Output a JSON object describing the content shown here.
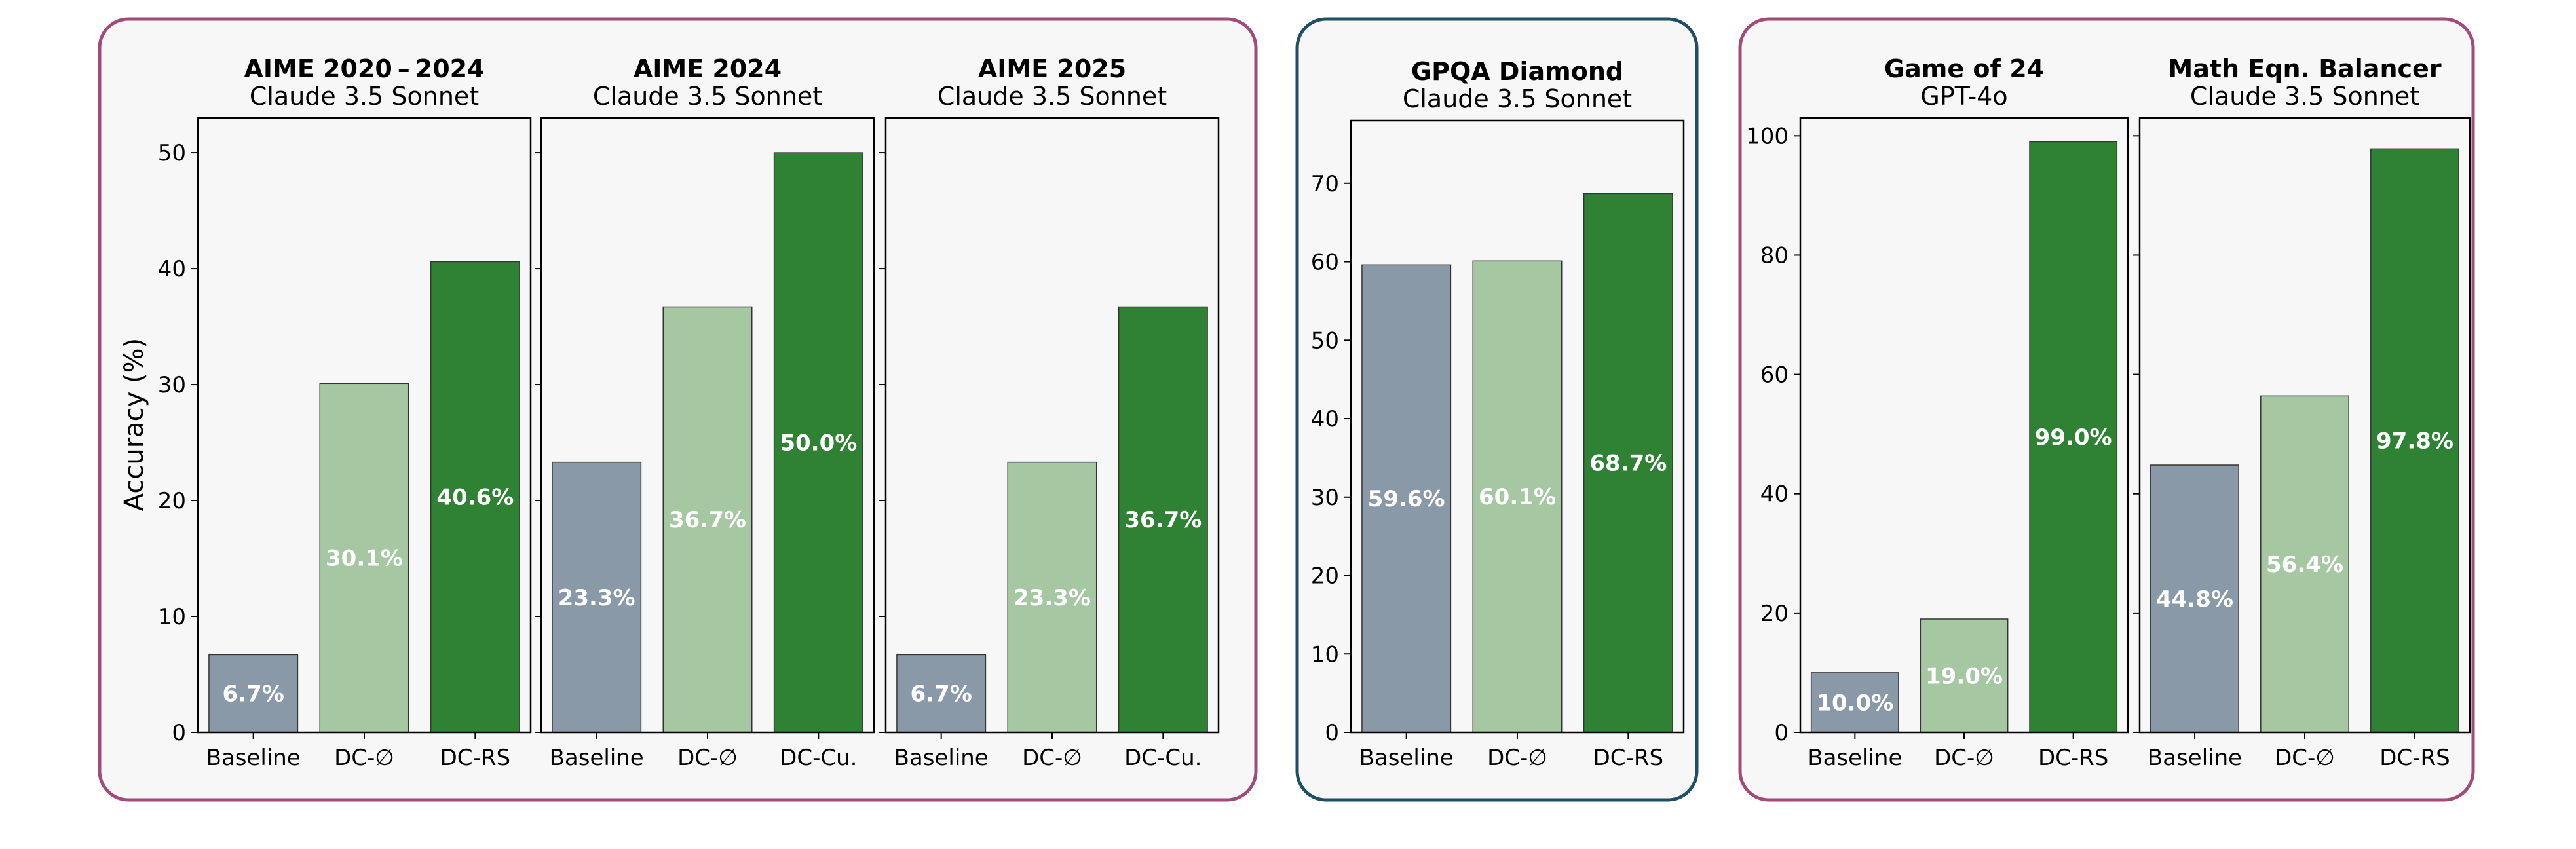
{
  "colors": {
    "baseline": "#8a99a8",
    "dc_empty": "#a5c8a3",
    "dc_best": "#2f8233",
    "group_border_1": "#a24b78",
    "group_border_2": "#1f4f63",
    "group_border_3": "#a24b78",
    "panel_background": "#f7f7f7",
    "bar_label": "#ffffff"
  },
  "chart_data": {
    "type": "bar",
    "ylabel": "Accuracy (%)",
    "groups": [
      {
        "panels": [
          {
            "title": "AIME 2020 2024",
            "title_parts": [
              "AIME 2020",
              "–",
              "2024"
            ],
            "subtitle": "Claude 3.5 Sonnet",
            "categories": [
              "Baseline",
              "DC-∅",
              "DC-RS"
            ],
            "values": [
              6.7,
              30.1,
              40.6
            ],
            "labels": [
              "6.7%",
              "30.1%",
              "40.6%"
            ],
            "ylim": [
              0,
              53
            ],
            "yticks": [
              0,
              10,
              20,
              30,
              40,
              50
            ],
            "show_ytick_labels": true
          },
          {
            "title": "AIME 2024",
            "title_parts": [
              "AIME 2024"
            ],
            "subtitle": "Claude 3.5 Sonnet",
            "categories": [
              "Baseline",
              "DC-∅",
              "DC-Cu."
            ],
            "values": [
              23.3,
              36.7,
              50.0
            ],
            "labels": [
              "23.3%",
              "36.7%",
              "50.0%"
            ],
            "ylim": [
              0,
              53
            ],
            "yticks": [
              0,
              10,
              20,
              30,
              40,
              50
            ],
            "show_ytick_labels": false
          },
          {
            "title": "AIME 2025",
            "title_parts": [
              "AIME 2025"
            ],
            "subtitle": "Claude 3.5 Sonnet",
            "categories": [
              "Baseline",
              "DC-∅",
              "DC-Cu."
            ],
            "values": [
              6.7,
              23.3,
              36.7
            ],
            "labels": [
              "6.7%",
              "23.3%",
              "36.7%"
            ],
            "ylim": [
              0,
              53
            ],
            "yticks": [
              0,
              10,
              20,
              30,
              40,
              50
            ],
            "show_ytick_labels": false
          }
        ]
      },
      {
        "panels": [
          {
            "title": "GPQA Diamond",
            "title_parts": [
              "GPQA Diamond"
            ],
            "subtitle": "Claude 3.5 Sonnet",
            "categories": [
              "Baseline",
              "DC-∅",
              "DC-RS"
            ],
            "values": [
              59.6,
              60.1,
              68.7
            ],
            "labels": [
              "59.6%",
              "60.1%",
              "68.7%"
            ],
            "ylim": [
              0,
              78
            ],
            "yticks": [
              0,
              10,
              20,
              30,
              40,
              50,
              60,
              70
            ],
            "show_ytick_labels": true
          }
        ]
      },
      {
        "panels": [
          {
            "title": "Game of 24",
            "title_parts": [
              "Game of 24"
            ],
            "subtitle": "GPT-4o",
            "categories": [
              "Baseline",
              "DC-∅",
              "DC-RS"
            ],
            "values": [
              10.0,
              19.0,
              99.0
            ],
            "labels": [
              "10.0%",
              "19.0%",
              "99.0%"
            ],
            "ylim": [
              0,
              103
            ],
            "yticks": [
              0,
              20,
              40,
              60,
              80,
              100
            ],
            "show_ytick_labels": true
          },
          {
            "title": "Math Eqn. Balancer",
            "title_parts": [
              "Math Eqn. Balancer"
            ],
            "subtitle": "Claude 3.5 Sonnet",
            "categories": [
              "Baseline",
              "DC-∅",
              "DC-RS"
            ],
            "values": [
              44.8,
              56.4,
              97.8
            ],
            "labels": [
              "44.8%",
              "56.4%",
              "97.8%"
            ],
            "ylim": [
              0,
              103
            ],
            "yticks": [
              0,
              20,
              40,
              60,
              80,
              100
            ],
            "show_ytick_labels": false
          }
        ]
      }
    ]
  }
}
